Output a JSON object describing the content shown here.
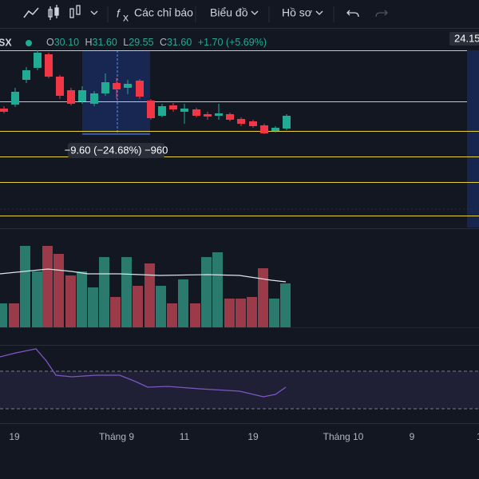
{
  "toolbar": {
    "items": [
      "Các chỉ báo",
      "Biểu đồ",
      "Hồ sơ"
    ]
  },
  "legend": {
    "symbol": "SX",
    "open": {
      "label": "O",
      "value": "30.10"
    },
    "high": {
      "label": "H",
      "value": "31.60"
    },
    "low": {
      "label": "L",
      "value": "29.55"
    },
    "close": {
      "label": "C",
      "value": "31.60"
    },
    "change": "+1.70 (+5.69%)"
  },
  "price_label": "24.15",
  "measure": "−9.60 (−24.68%) −960",
  "time_axis": [
    "19",
    "Tháng 9",
    "11",
    "19",
    "Tháng 10",
    "9",
    "1"
  ]
}
